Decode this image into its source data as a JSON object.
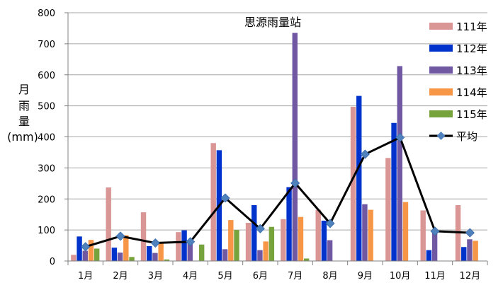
{
  "chart_data": {
    "type": "bar",
    "title": "思源雨量站",
    "ylabel": [
      "月",
      "雨",
      "量",
      "(mm)"
    ],
    "xlabel": "",
    "categories": [
      "1月",
      "2月",
      "3月",
      "4月",
      "5月",
      "6月",
      "7月",
      "8月",
      "9月",
      "10月",
      "11月",
      "12月"
    ],
    "ylim": [
      0,
      800
    ],
    "yticks": [
      0,
      100,
      200,
      300,
      400,
      500,
      600,
      700,
      800
    ],
    "grid": true,
    "legend_position": "right",
    "series": [
      {
        "name": "111年",
        "color": "#d99694",
        "values": [
          20,
          237,
          157,
          93,
          380,
          123,
          135,
          165,
          497,
          332,
          163,
          180
        ]
      },
      {
        "name": "112年",
        "color": "#0033cc",
        "values": [
          79,
          43,
          48,
          99,
          357,
          180,
          238,
          130,
          532,
          445,
          35,
          45
        ]
      },
      {
        "name": "113年",
        "color": "#7058a3",
        "values": [
          33,
          27,
          26,
          63,
          38,
          35,
          735,
          67,
          183,
          628,
          90,
          70
        ]
      },
      {
        "name": "114年",
        "color": "#f79646",
        "values": [
          68,
          83,
          60,
          0,
          132,
          63,
          142,
          0,
          165,
          190,
          0,
          65
        ]
      },
      {
        "name": "115年",
        "color": "#77a33c",
        "values": [
          40,
          13,
          5,
          53,
          100,
          110,
          8,
          0,
          0,
          0,
          0,
          0
        ]
      }
    ],
    "line_series": {
      "name": "平均",
      "color": "#000000",
      "marker_color": "#4f81bd",
      "values": [
        46,
        80,
        58,
        62,
        203,
        104,
        251,
        121,
        344,
        398,
        96,
        91
      ]
    }
  }
}
